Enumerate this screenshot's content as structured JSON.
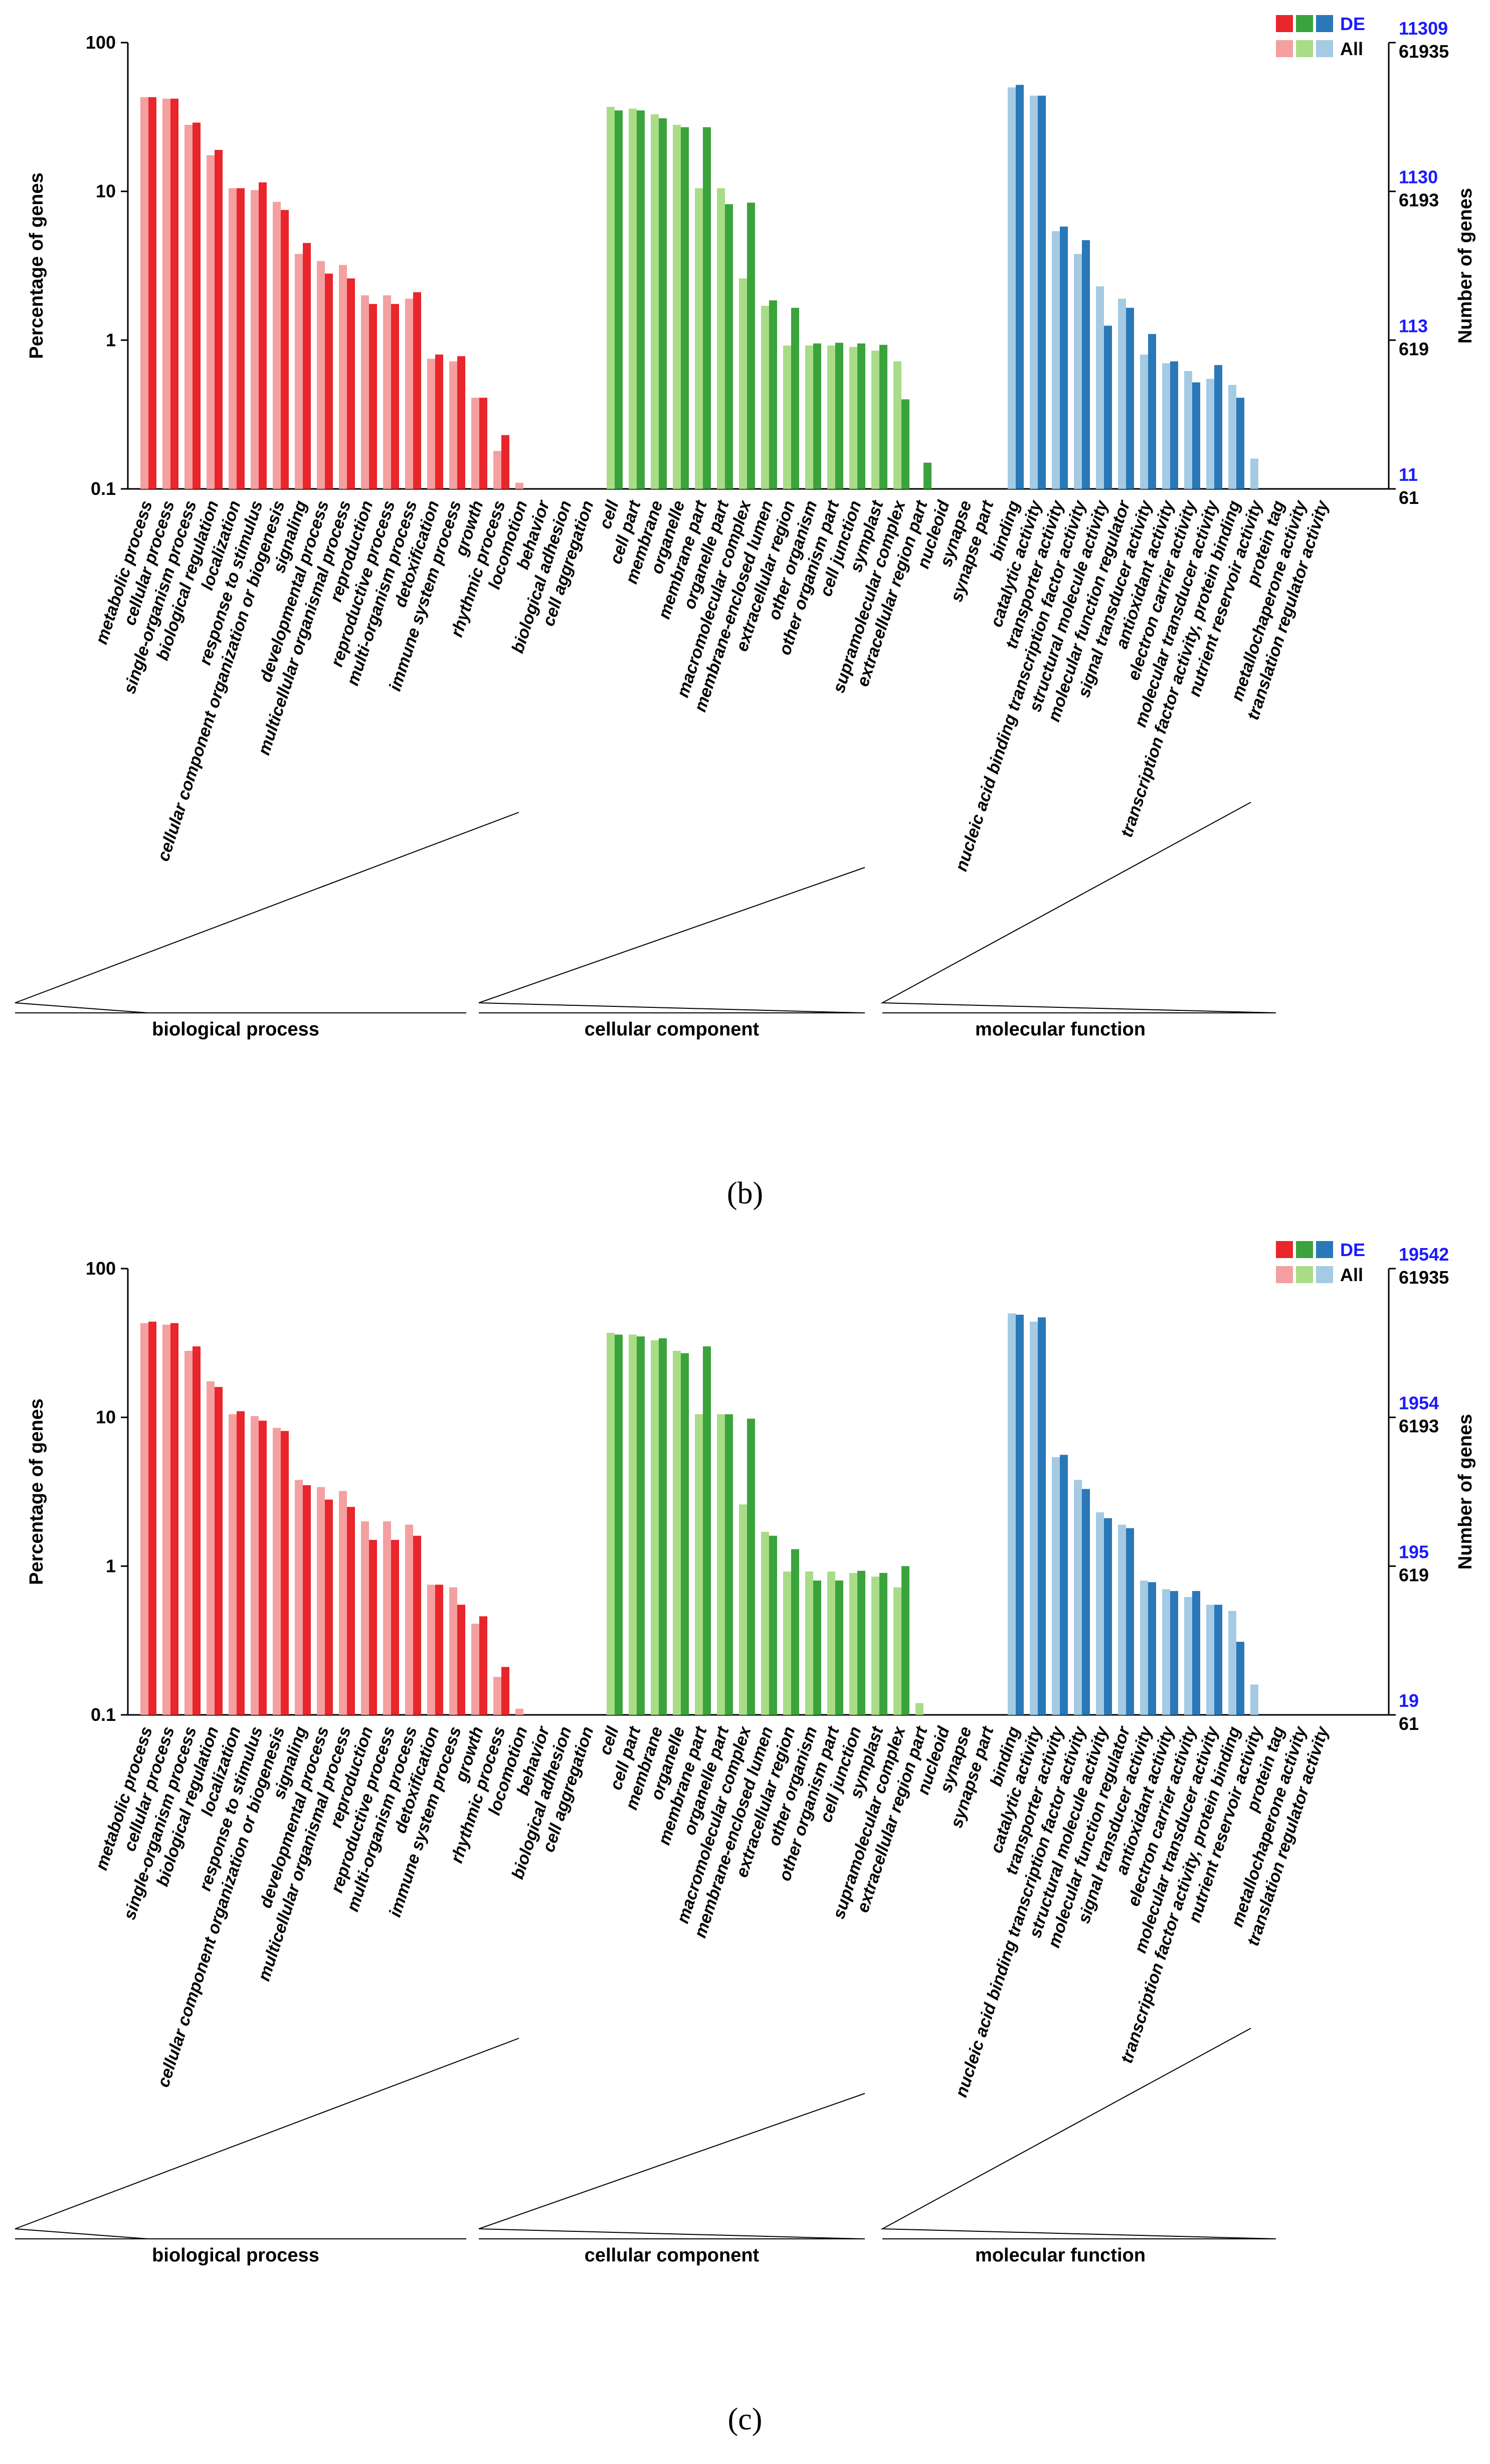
{
  "colors": {
    "de": [
      "#e8262b",
      "#3ba33b",
      "#2a78b8"
    ],
    "all": [
      "#f4a0a0",
      "#a9dc87",
      "#a4cbe3"
    ],
    "legend_de_text": "#1a1aff",
    "right_axis_top": "#1a1aff"
  },
  "legend": {
    "de": "DE",
    "all": "All"
  },
  "categories": {
    "biological": [
      "metabolic process",
      "cellular process",
      "single-organism process",
      "biological regulation",
      "localization",
      "response to stimulus",
      "cellular component organization or biogenesis",
      "signaling",
      "developmental process",
      "multicellular organismal process",
      "reproduction",
      "reproductive process",
      "multi-organism process",
      "detoxification",
      "immune system process",
      "growth",
      "rhythmic process",
      "locomotion",
      "behavior",
      "biological adhesion",
      "cell aggregation"
    ],
    "cellular": [
      "cell",
      "cell part",
      "membrane",
      "organelle",
      "membrane part",
      "organelle part",
      "macromolecular complex",
      "membrane-enclosed lumen",
      "extracellular region",
      "other organism",
      "other organism part",
      "cell junction",
      "symplast",
      "supramolecular complex",
      "extracellular region part",
      "nucleoid",
      "synapse",
      "synapse part"
    ],
    "molecular": [
      "binding",
      "catalytic activity",
      "transporter activity",
      "nucleic acid binding transcription factor activity",
      "structural molecule activity",
      "molecular function regulator",
      "signal transducer activity",
      "antioxidant activity",
      "electron carrier activity",
      "molecular transducer activity",
      "transcription factor activity, protein binding",
      "nutrient reservoir activity",
      "protein tag",
      "metallochaperone activity",
      "translation regulator activity"
    ]
  },
  "chart_data": [
    {
      "type": "bar",
      "panel_label": "b",
      "yscale": "log",
      "ylim": [
        0.1,
        100
      ],
      "yticks": [
        "100",
        "10",
        "1",
        "0.1"
      ],
      "ylabel": "Percentage of genes",
      "right_ylabel": "Number of genes",
      "right_ticks_de": [
        "11309",
        "1130",
        "113",
        "11"
      ],
      "right_ticks_all": [
        "61935",
        "6193",
        "619",
        "61"
      ],
      "group_labels": [
        "biological process",
        "cellular component",
        "molecular function"
      ],
      "series": [
        {
          "name": "All",
          "groups": [
            [
              43,
              42,
              28,
              17.5,
              10.5,
              10.2,
              8.5,
              3.8,
              3.4,
              3.2,
              2.0,
              2.0,
              1.9,
              0.75,
              0.72,
              0.41,
              0.18,
              0.11,
              0.1,
              0.1,
              0.1
            ],
            [
              37,
              36,
              33,
              28,
              10.5,
              10.5,
              2.6,
              1.7,
              0.92,
              0.92,
              0.92,
              0.9,
              0.85,
              0.72,
              0.1,
              0.1,
              0.1,
              0.1
            ],
            [
              50,
              44,
              5.4,
              3.8,
              2.3,
              1.9,
              0.8,
              0.7,
              0.62,
              0.55,
              0.5,
              0.16,
              0.1,
              0.1,
              0.1
            ]
          ]
        },
        {
          "name": "DE",
          "groups": [
            [
              43,
              42,
              29,
              19,
              10.5,
              11.5,
              7.5,
              4.5,
              2.8,
              2.6,
              1.75,
              1.75,
              2.1,
              0.8,
              0.78,
              0.41,
              0.23,
              0.1,
              0.1,
              0.1,
              0.1
            ],
            [
              35,
              35,
              31,
              27,
              27,
              8.2,
              8.4,
              1.85,
              1.65,
              0.95,
              0.96,
              0.95,
              0.93,
              0.4,
              0.15,
              0.1,
              0.1,
              0.1
            ],
            [
              52,
              44,
              5.8,
              4.7,
              1.25,
              1.65,
              1.1,
              0.72,
              0.52,
              0.68,
              0.41,
              0.1,
              0.1,
              0.1,
              0.1
            ]
          ]
        }
      ]
    },
    {
      "type": "bar",
      "panel_label": "c",
      "yscale": "log",
      "ylim": [
        0.1,
        100
      ],
      "yticks": [
        "100",
        "10",
        "1",
        "0.1"
      ],
      "ylabel": "Percentage of genes",
      "right_ylabel": "Number of genes",
      "right_ticks_de": [
        "19542",
        "1954",
        "195",
        "19"
      ],
      "right_ticks_all": [
        "61935",
        "6193",
        "619",
        "61"
      ],
      "group_labels": [
        "biological process",
        "cellular component",
        "molecular function"
      ],
      "series": [
        {
          "name": "All",
          "groups": [
            [
              43,
              42,
              28,
              17.5,
              10.5,
              10.2,
              8.5,
              3.8,
              3.4,
              3.2,
              2.0,
              2.0,
              1.9,
              0.75,
              0.72,
              0.41,
              0.18,
              0.11,
              0.1,
              0.1,
              0.1
            ],
            [
              37,
              36,
              33,
              28,
              10.5,
              10.5,
              2.6,
              1.7,
              0.92,
              0.92,
              0.92,
              0.9,
              0.85,
              0.72,
              0.12,
              0.1,
              0.1,
              0.1
            ],
            [
              50,
              44,
              5.4,
              3.8,
              2.3,
              1.9,
              0.8,
              0.7,
              0.62,
              0.55,
              0.5,
              0.16,
              0.1,
              0.1,
              0.1
            ]
          ]
        },
        {
          "name": "DE",
          "groups": [
            [
              44,
              43,
              30,
              16,
              11,
              9.5,
              8.1,
              3.5,
              2.8,
              2.5,
              1.5,
              1.5,
              1.6,
              0.75,
              0.55,
              0.46,
              0.21,
              0.1,
              0.1,
              0.1,
              0.1
            ],
            [
              36,
              35,
              34,
              27,
              30,
              10.5,
              9.8,
              1.6,
              1.3,
              0.8,
              0.8,
              0.93,
              0.9,
              1.0,
              0.1,
              0.1,
              0.1,
              0.1
            ],
            [
              49,
              47,
              5.6,
              3.3,
              2.1,
              1.8,
              0.78,
              0.68,
              0.68,
              0.55,
              0.31,
              0.1,
              0.1,
              0.1,
              0.1
            ]
          ]
        }
      ]
    }
  ]
}
